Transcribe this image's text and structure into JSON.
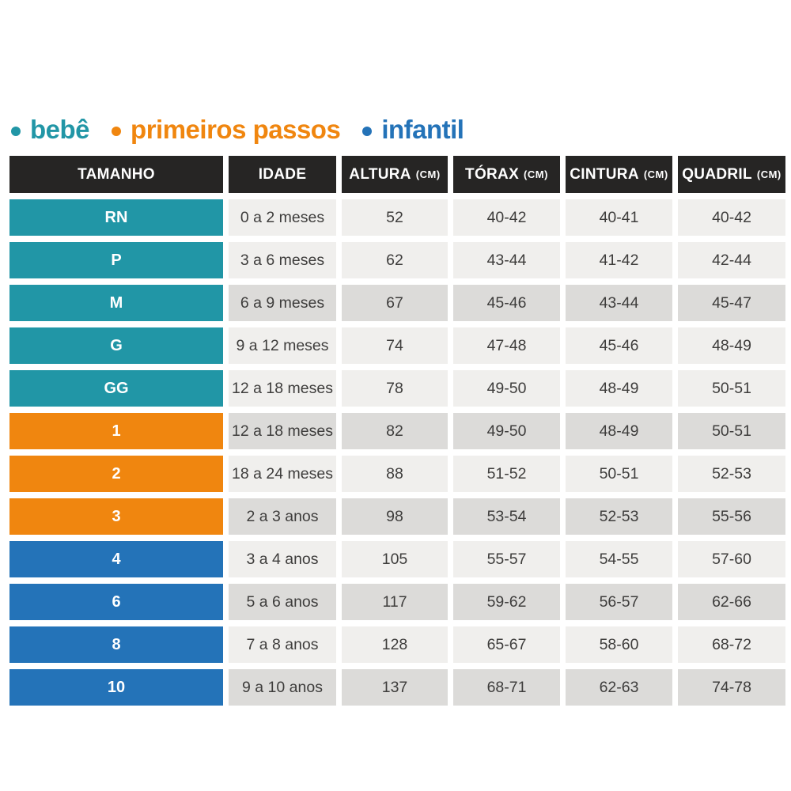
{
  "legend": {
    "items": [
      {
        "label": "bebê",
        "color": "#2196a6"
      },
      {
        "label": "primeiros passos",
        "color": "#f0860f"
      },
      {
        "label": "infantil",
        "color": "#2473b8"
      }
    ]
  },
  "table": {
    "columns": [
      {
        "label": "TAMANHO",
        "unit": ""
      },
      {
        "label": "IDADE",
        "unit": ""
      },
      {
        "label": "ALTURA",
        "unit": "(CM)"
      },
      {
        "label": "TÓRAX",
        "unit": "(CM)"
      },
      {
        "label": "CINTURA",
        "unit": "(CM)"
      },
      {
        "label": "QUADRIL",
        "unit": "(CM)"
      }
    ],
    "group_colors": {
      "bebe": "#2196a6",
      "primeiros-passos": "#f0860f",
      "infantil": "#2473b8"
    },
    "rows": [
      {
        "size": "RN",
        "group": "bebe",
        "shade": "light",
        "idade": "0 a 2 meses",
        "altura": "52",
        "torax": "40-42",
        "cintura": "40-41",
        "quadril": "40-42"
      },
      {
        "size": "P",
        "group": "bebe",
        "shade": "light",
        "idade": "3 a 6 meses",
        "altura": "62",
        "torax": "43-44",
        "cintura": "41-42",
        "quadril": "42-44"
      },
      {
        "size": "M",
        "group": "bebe",
        "shade": "dark",
        "idade": "6 a 9 meses",
        "altura": "67",
        "torax": "45-46",
        "cintura": "43-44",
        "quadril": "45-47"
      },
      {
        "size": "G",
        "group": "bebe",
        "shade": "light",
        "idade": "9 a 12 meses",
        "altura": "74",
        "torax": "47-48",
        "cintura": "45-46",
        "quadril": "48-49"
      },
      {
        "size": "GG",
        "group": "bebe",
        "shade": "light",
        "idade": "12 a 18 meses",
        "altura": "78",
        "torax": "49-50",
        "cintura": "48-49",
        "quadril": "50-51"
      },
      {
        "size": "1",
        "group": "primeiros-passos",
        "shade": "dark",
        "idade": "12 a 18 meses",
        "altura": "82",
        "torax": "49-50",
        "cintura": "48-49",
        "quadril": "50-51"
      },
      {
        "size": "2",
        "group": "primeiros-passos",
        "shade": "light",
        "idade": "18 a 24 meses",
        "altura": "88",
        "torax": "51-52",
        "cintura": "50-51",
        "quadril": "52-53"
      },
      {
        "size": "3",
        "group": "primeiros-passos",
        "shade": "dark",
        "idade": "2 a 3 anos",
        "altura": "98",
        "torax": "53-54",
        "cintura": "52-53",
        "quadril": "55-56"
      },
      {
        "size": "4",
        "group": "infantil",
        "shade": "light",
        "idade": "3 a 4 anos",
        "altura": "105",
        "torax": "55-57",
        "cintura": "54-55",
        "quadril": "57-60"
      },
      {
        "size": "6",
        "group": "infantil",
        "shade": "dark",
        "idade": "5 a 6 anos",
        "altura": "117",
        "torax": "59-62",
        "cintura": "56-57",
        "quadril": "62-66"
      },
      {
        "size": "8",
        "group": "infantil",
        "shade": "light",
        "idade": "7 a 8 anos",
        "altura": "128",
        "torax": "65-67",
        "cintura": "58-60",
        "quadril": "68-72"
      },
      {
        "size": "10",
        "group": "infantil",
        "shade": "dark",
        "idade": "9 a 10 anos",
        "altura": "137",
        "torax": "68-71",
        "cintura": "62-63",
        "quadril": "74-78"
      }
    ]
  },
  "chart_data": {
    "type": "table",
    "title": "",
    "legend_entries": [
      "bebê",
      "primeiros passos",
      "infantil"
    ],
    "columns": [
      "TAMANHO",
      "IDADE",
      "ALTURA (CM)",
      "TÓRAX (CM)",
      "CINTURA (CM)",
      "QUADRIL (CM)"
    ],
    "rows": [
      [
        "RN",
        "0 a 2 meses",
        "52",
        "40-42",
        "40-41",
        "40-42"
      ],
      [
        "P",
        "3 a 6 meses",
        "62",
        "43-44",
        "41-42",
        "42-44"
      ],
      [
        "M",
        "6 a 9 meses",
        "67",
        "45-46",
        "43-44",
        "45-47"
      ],
      [
        "G",
        "9 a 12 meses",
        "74",
        "47-48",
        "45-46",
        "48-49"
      ],
      [
        "GG",
        "12 a 18 meses",
        "78",
        "49-50",
        "48-49",
        "50-51"
      ],
      [
        "1",
        "12 a 18 meses",
        "82",
        "49-50",
        "48-49",
        "50-51"
      ],
      [
        "2",
        "18 a 24 meses",
        "88",
        "51-52",
        "50-51",
        "52-53"
      ],
      [
        "3",
        "2 a 3 anos",
        "98",
        "53-54",
        "52-53",
        "55-56"
      ],
      [
        "4",
        "3 a 4 anos",
        "105",
        "55-57",
        "54-55",
        "57-60"
      ],
      [
        "6",
        "5 a 6 anos",
        "117",
        "59-62",
        "56-57",
        "62-66"
      ],
      [
        "8",
        "7 a 8 anos",
        "128",
        "65-67",
        "58-60",
        "68-72"
      ],
      [
        "10",
        "9 a 10 anos",
        "137",
        "68-71",
        "62-63",
        "74-78"
      ]
    ]
  }
}
